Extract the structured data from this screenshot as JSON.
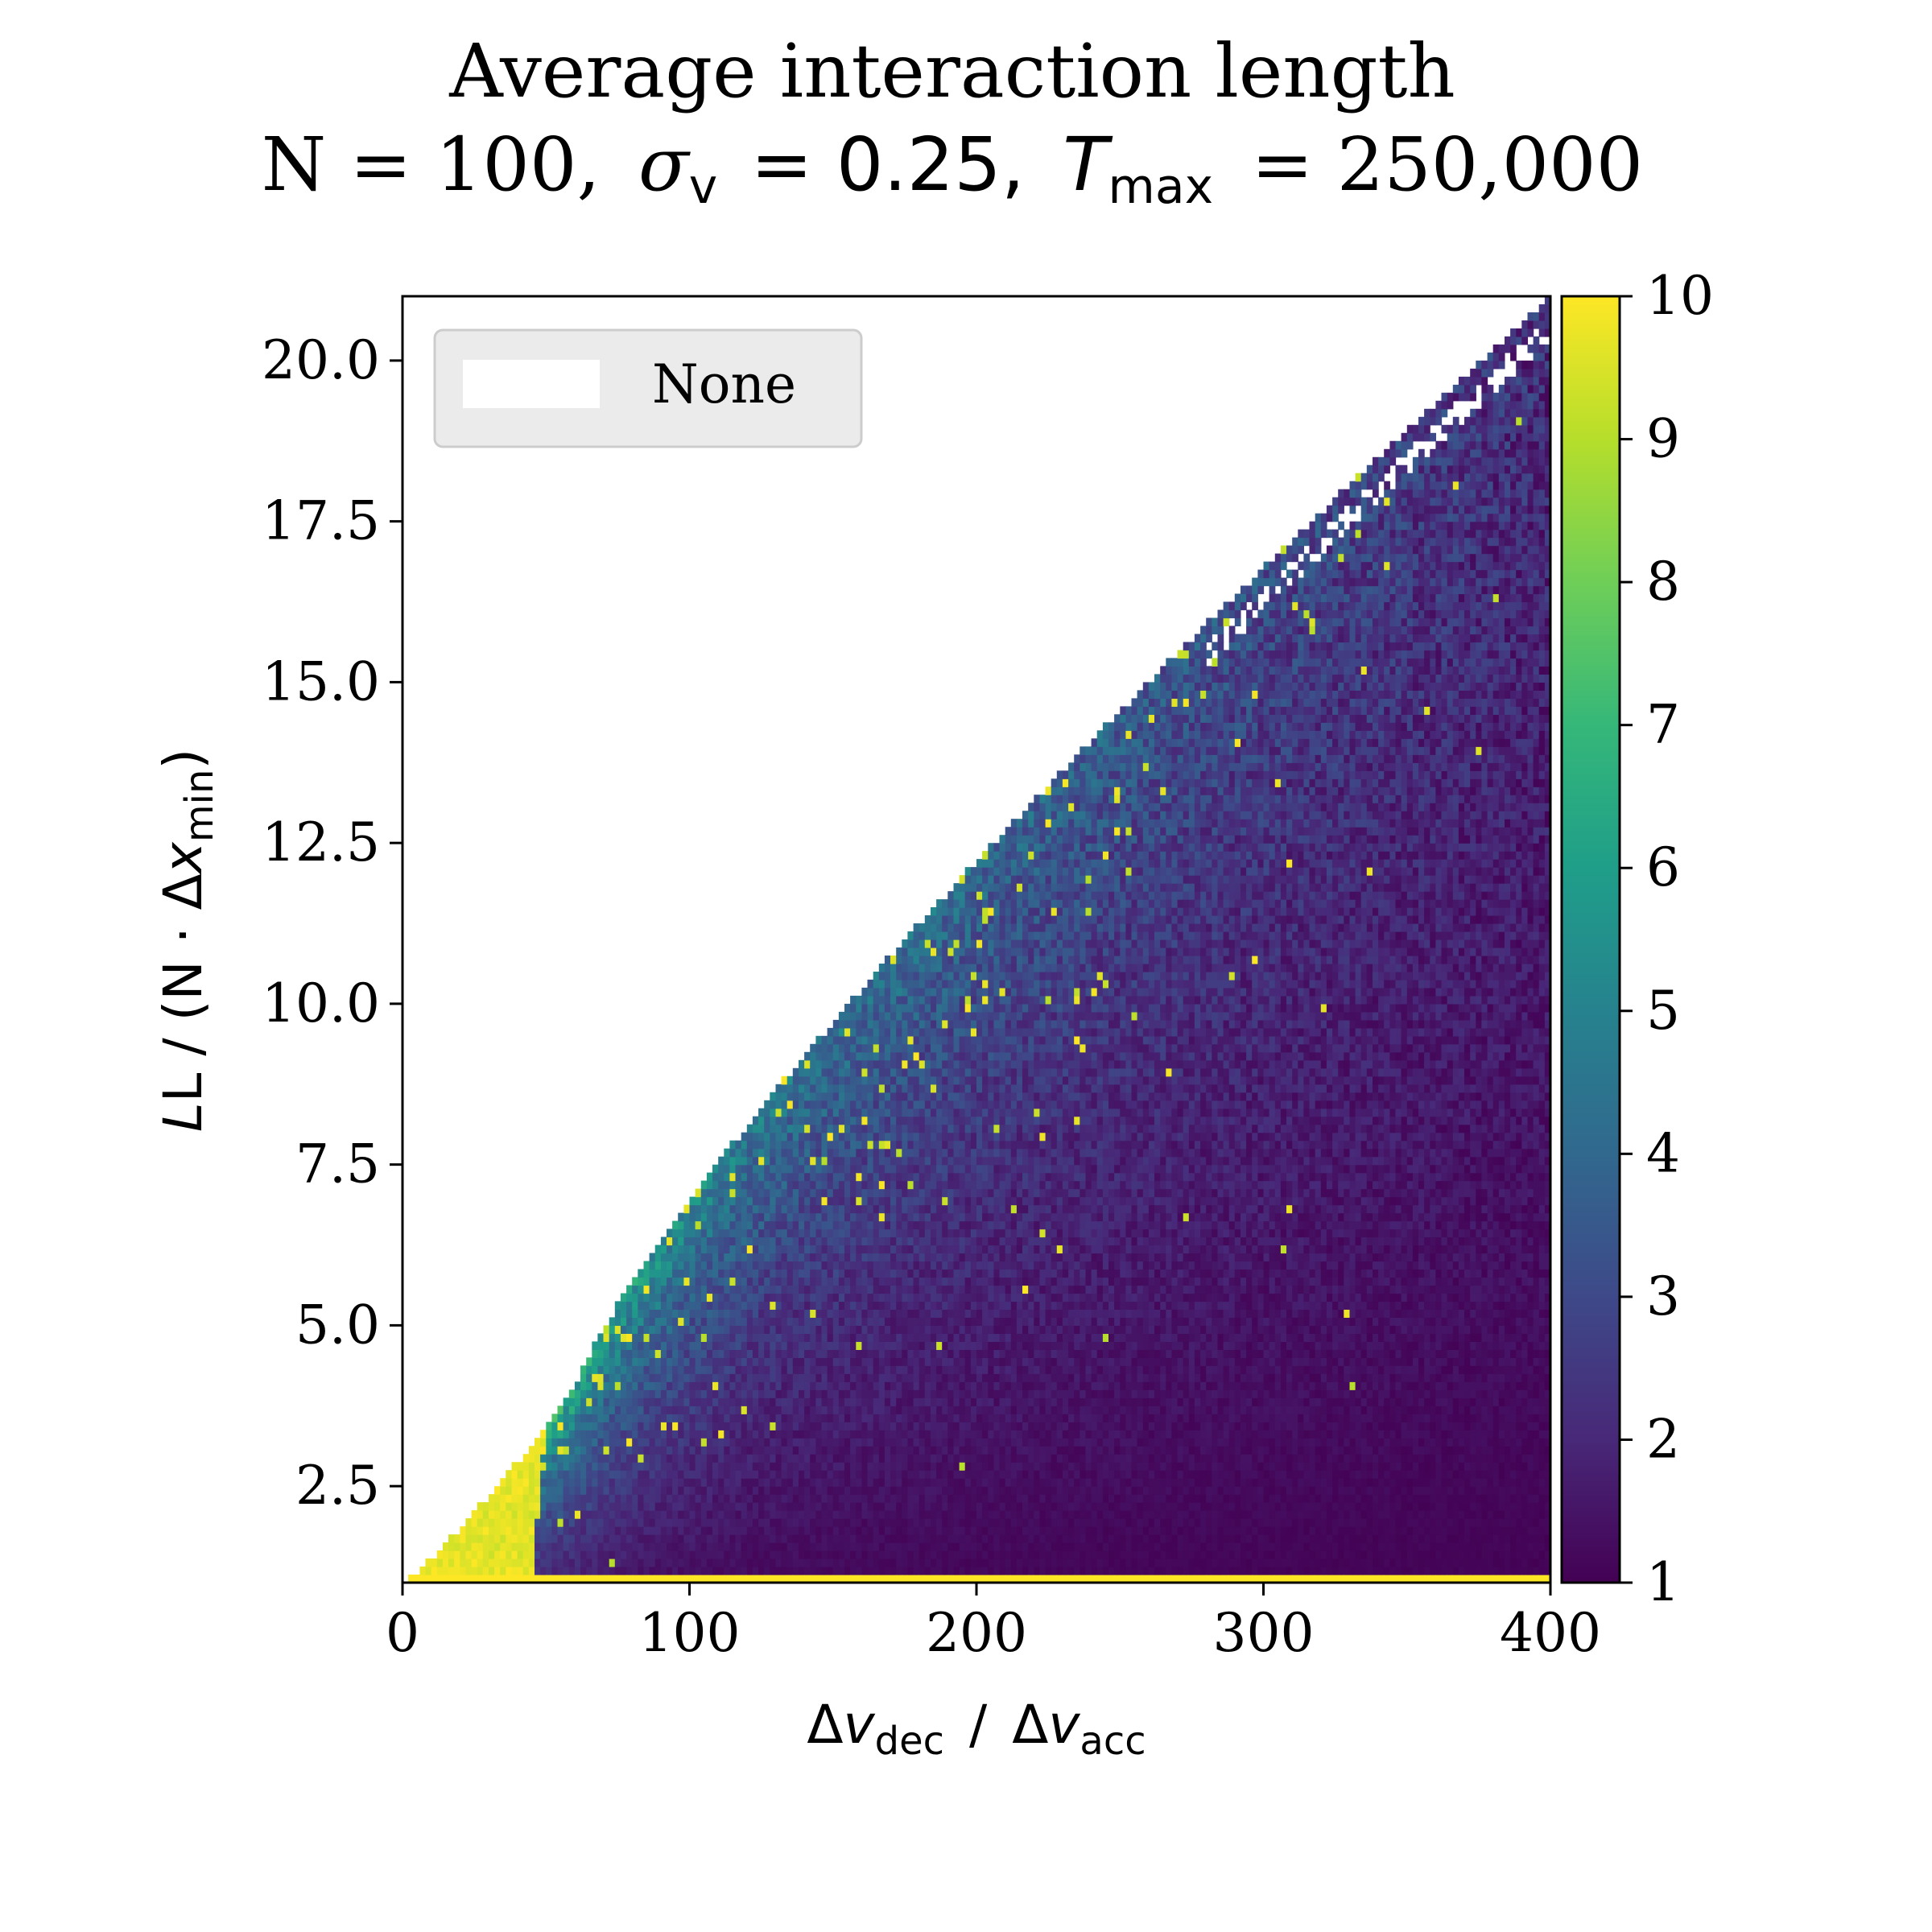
{
  "chart_data": {
    "type": "heatmap",
    "title_line1": "Average interaction length",
    "title_line2": {
      "n_part": "N = 100,",
      "sigma_symbol": "σ",
      "sigma_sub": "v",
      "sigma_value": "= 0.25,",
      "t_symbol": "T",
      "t_sub": "max",
      "t_value": "= 250,000"
    },
    "xlabel": {
      "delta": "Δ",
      "v1": "v",
      "sub1": "dec",
      "slash": "/",
      "v2": "v",
      "sub2": "acc"
    },
    "ylabel": {
      "pre": "L / (N · Δ",
      "x": "x",
      "sub": "min",
      "post": ")"
    },
    "xlim": [
      0,
      400
    ],
    "ylim": [
      1,
      21
    ],
    "x_ticks": [
      "0",
      "100",
      "200",
      "300",
      "400"
    ],
    "x_tick_values": [
      0,
      100,
      200,
      300,
      400
    ],
    "y_ticks": [
      "2.5",
      "5.0",
      "7.5",
      "10.0",
      "12.5",
      "15.0",
      "17.5",
      "20.0"
    ],
    "y_tick_values": [
      2.5,
      5.0,
      7.5,
      10.0,
      12.5,
      15.0,
      17.5,
      20.0
    ],
    "colorbar": {
      "ticks": [
        "1",
        "2",
        "3",
        "4",
        "5",
        "6",
        "7",
        "8",
        "9",
        "10"
      ],
      "tick_values": [
        1,
        2,
        3,
        4,
        5,
        6,
        7,
        8,
        9,
        10
      ],
      "range": [
        1,
        10
      ],
      "colormap": "viridis"
    },
    "legend": {
      "label": "None",
      "swatch_color": "#ffffff",
      "placement": "upper-left"
    },
    "colors": {
      "high": "#fde725",
      "low": "#440154",
      "mid": "#21918c"
    }
  }
}
